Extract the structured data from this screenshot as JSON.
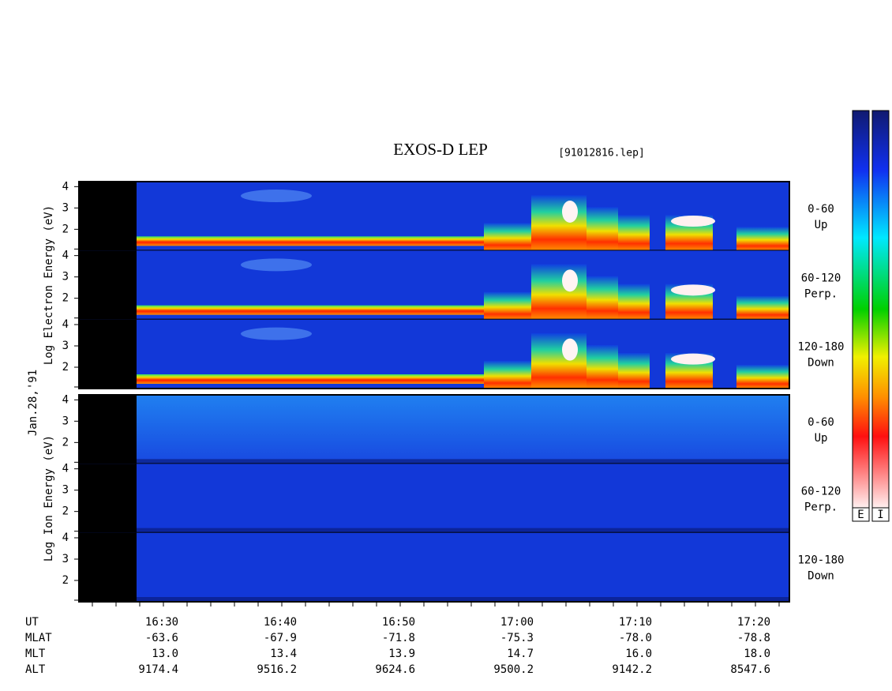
{
  "header": {
    "title": "EXOS-D LEP",
    "file": "[91012816.lep]"
  },
  "date": "Jan.28,'91",
  "groups": [
    {
      "axis_label": "Log Electron Energy (eV)",
      "panels": [
        {
          "angle": "0-60",
          "direction": "Up"
        },
        {
          "angle": "60-120",
          "direction": "Perp."
        },
        {
          "angle": "120-180",
          "direction": "Down"
        }
      ]
    },
    {
      "axis_label": "Log Ion Energy (eV)",
      "panels": [
        {
          "angle": "0-60",
          "direction": "Up"
        },
        {
          "angle": "60-120",
          "direction": "Perp."
        },
        {
          "angle": "120-180",
          "direction": "Down"
        }
      ]
    }
  ],
  "energy_ticks": [
    "4",
    "3",
    "2"
  ],
  "orbit": {
    "rows": [
      {
        "label": "UT",
        "values": [
          "16:30",
          "16:40",
          "16:50",
          "17:00",
          "17:10",
          "17:20"
        ]
      },
      {
        "label": "MLAT",
        "values": [
          "-63.6",
          "-67.9",
          "-71.8",
          "-75.3",
          "-78.0",
          "-78.8"
        ]
      },
      {
        "label": "MLT",
        "values": [
          "13.0",
          "13.4",
          "13.9",
          "14.7",
          "16.0",
          "18.0"
        ]
      },
      {
        "label": "ALT",
        "values": [
          "9174.4",
          "9516.2",
          "9624.6",
          "9500.2",
          "9142.2",
          "8547.6"
        ]
      }
    ]
  },
  "colorbars": [
    "E",
    "I"
  ]
}
